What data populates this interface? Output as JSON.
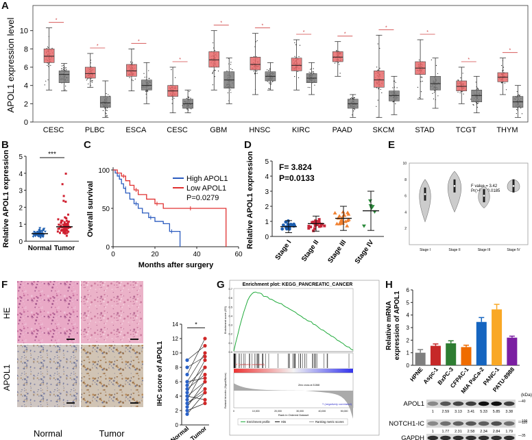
{
  "panels": {
    "A": "A",
    "B": "B",
    "C": "C",
    "D": "D",
    "E": "E",
    "F": "F",
    "G": "G",
    "H": "H"
  },
  "chart_data": [
    {
      "id": "A",
      "type": "box",
      "ylabel": "APOL1 expression level",
      "ylim": [
        0,
        12
      ],
      "yticks": [
        0,
        2,
        4,
        6,
        8,
        10
      ],
      "categories": [
        "CESC",
        "PLBC",
        "ESCA",
        "CESC",
        "GBM",
        "HNSC",
        "KIRC",
        "PAAD",
        "SKCM",
        "STAD",
        "TCGT",
        "THYM"
      ],
      "series": [
        {
          "name": "Tumor",
          "color": "#e8686a",
          "boxes": [
            {
              "q1": 6.5,
              "med": 7.2,
              "q3": 8.0,
              "lo": 3.5,
              "hi": 10.3
            },
            {
              "q1": 4.8,
              "med": 5.3,
              "q3": 6.0,
              "lo": 3.8,
              "hi": 7.5
            },
            {
              "q1": 5.0,
              "med": 5.6,
              "q3": 6.3,
              "lo": 3.4,
              "hi": 8.0
            },
            {
              "q1": 2.8,
              "med": 3.4,
              "q3": 4.0,
              "lo": 1.0,
              "hi": 6.0
            },
            {
              "q1": 6.0,
              "med": 6.8,
              "q3": 7.7,
              "lo": 3.5,
              "hi": 10.0
            },
            {
              "q1": 5.7,
              "med": 6.3,
              "q3": 7.1,
              "lo": 3.0,
              "hi": 9.7
            },
            {
              "q1": 5.6,
              "med": 6.2,
              "q3": 7.0,
              "lo": 3.5,
              "hi": 9.0
            },
            {
              "q1": 6.6,
              "med": 7.1,
              "q3": 7.7,
              "lo": 5.0,
              "hi": 8.8
            },
            {
              "q1": 3.8,
              "med": 4.6,
              "q3": 5.6,
              "lo": 0.5,
              "hi": 9.5
            },
            {
              "q1": 5.2,
              "med": 5.9,
              "q3": 6.6,
              "lo": 2.5,
              "hi": 9.0
            },
            {
              "q1": 3.4,
              "med": 3.9,
              "q3": 4.5,
              "lo": 2.0,
              "hi": 6.0
            },
            {
              "q1": 4.4,
              "med": 4.9,
              "q3": 5.4,
              "lo": 3.0,
              "hi": 7.0
            }
          ]
        },
        {
          "name": "Normal",
          "color": "#7a7a7a",
          "boxes": [
            {
              "q1": 4.3,
              "med": 5.2,
              "q3": 5.6,
              "lo": 3.4,
              "hi": 6.4
            },
            {
              "q1": 1.6,
              "med": 2.1,
              "q3": 2.8,
              "lo": 0.5,
              "hi": 4.5
            },
            {
              "q1": 3.5,
              "med": 4.0,
              "q3": 4.6,
              "lo": 2.0,
              "hi": 6.5
            },
            {
              "q1": 1.5,
              "med": 2.0,
              "q3": 2.5,
              "lo": 1.0,
              "hi": 3.5
            },
            {
              "q1": 3.7,
              "med": 4.6,
              "q3": 5.5,
              "lo": 2.0,
              "hi": 7.0
            },
            {
              "q1": 4.5,
              "med": 5.0,
              "q3": 5.5,
              "lo": 3.5,
              "hi": 6.5
            },
            {
              "q1": 4.3,
              "med": 4.8,
              "q3": 5.3,
              "lo": 3.0,
              "hi": 6.5
            },
            {
              "q1": 1.5,
              "med": 2.0,
              "q3": 2.5,
              "lo": 0.5,
              "hi": 3.0
            },
            {
              "q1": 2.3,
              "med": 2.9,
              "q3": 3.4,
              "lo": 0.8,
              "hi": 5.0
            },
            {
              "q1": 3.5,
              "med": 4.2,
              "q3": 5.0,
              "lo": 1.5,
              "hi": 7.0
            },
            {
              "q1": 2.2,
              "med": 2.9,
              "q3": 3.5,
              "lo": 1.0,
              "hi": 5.0
            },
            {
              "q1": 1.6,
              "med": 2.2,
              "q3": 2.8,
              "lo": 0.5,
              "hi": 4.0
            }
          ]
        }
      ],
      "significance": "*"
    },
    {
      "id": "B",
      "type": "scatter",
      "ylabel": "Relative APOL1 expression",
      "ylim": [
        0,
        5
      ],
      "yticks": [
        0,
        1,
        2,
        3,
        4,
        5
      ],
      "categories": [
        "Normal",
        "Tumor"
      ],
      "means": [
        0.45,
        0.85
      ],
      "significance": "***"
    },
    {
      "id": "C",
      "type": "line",
      "xlabel": "Months after surgery",
      "ylabel": "Overall survival",
      "xlim": [
        0,
        60
      ],
      "ylim": [
        0,
        100
      ],
      "xticks": [
        0,
        20,
        40,
        60
      ],
      "yticks": [
        0,
        50,
        100
      ],
      "series": [
        {
          "name": "High APOL1",
          "color": "#2a5bbf",
          "x": [
            0,
            1,
            2,
            3,
            4,
            5,
            6,
            8,
            10,
            12,
            14,
            17,
            20,
            24,
            27,
            32
          ],
          "y": [
            100,
            96,
            92,
            88,
            82,
            76,
            70,
            62,
            56,
            50,
            44,
            38,
            33,
            30,
            20,
            0
          ]
        },
        {
          "name": "Low APOL1",
          "color": "#e03030",
          "x": [
            0,
            2,
            4,
            6,
            8,
            10,
            12,
            16,
            20,
            24,
            30,
            36,
            44,
            53,
            54
          ],
          "y": [
            100,
            96,
            92,
            86,
            80,
            74,
            68,
            62,
            56,
            50,
            50,
            50,
            50,
            50,
            0
          ]
        }
      ],
      "annotation": "P=0.0279"
    },
    {
      "id": "D",
      "type": "scatter",
      "ylabel": "Relative APOL1 expression",
      "ylim": [
        0,
        5
      ],
      "yticks": [
        0,
        1,
        2,
        3,
        4,
        5
      ],
      "categories": [
        "Stage I",
        "Stage II",
        "Stage III",
        "Stage IV"
      ],
      "colors": [
        "#1e5fb0",
        "#c8283a",
        "#f08030",
        "#2a8a3a"
      ],
      "means": [
        0.65,
        0.85,
        1.2,
        1.7
      ],
      "errors": [
        0.4,
        0.5,
        0.8,
        1.3
      ],
      "stat_f": "F= 3.824",
      "stat_p": "P=0.0133"
    },
    {
      "id": "E",
      "type": "violin",
      "ylim": [
        0,
        10
      ],
      "yticks": [
        2,
        4,
        6,
        8,
        10
      ],
      "categories": [
        "Stage I",
        "Stage II",
        "Stage III",
        "Stage IV"
      ],
      "medians": [
        6.2,
        7.2,
        6.0,
        7.2
      ],
      "f_value": "F value = 3.42",
      "pr_value": "Pr(>F) = 0.0185"
    },
    {
      "id": "F",
      "type": "paired",
      "ylabel": "IHC score of APOL1",
      "ylim": [
        0,
        14
      ],
      "yticks": [
        0,
        2,
        4,
        6,
        8,
        10,
        12,
        14
      ],
      "categories": [
        "Normal",
        "Tumor"
      ],
      "pairs": [
        [
          1.5,
          4.5
        ],
        [
          2,
          3
        ],
        [
          2.5,
          6
        ],
        [
          3,
          4.5
        ],
        [
          3.5,
          8
        ],
        [
          4,
          3.5
        ],
        [
          4,
          6
        ],
        [
          4.5,
          9
        ],
        [
          5,
          7
        ],
        [
          6,
          10
        ],
        [
          6,
          6.5
        ],
        [
          7,
          12
        ],
        [
          8,
          9.5
        ],
        [
          9,
          11
        ],
        [
          3,
          5
        ],
        [
          5.5,
          8
        ]
      ],
      "significance": "*"
    },
    {
      "id": "G",
      "type": "line",
      "title": "Enrichment plot: KEGG_PANCREATIC_CANCER",
      "ylabel": "Enrichment score (ES)",
      "xlabel": "Rank in Ordered Dataset",
      "ylim": [
        0,
        0.7
      ],
      "yticks": [
        "0.7",
        "0.6",
        "0.5",
        "0.4",
        "0.3",
        "0.2",
        "0.1",
        "0.0"
      ],
      "xticks": [
        "0",
        "10,000",
        "20,000",
        "30,000",
        "40,000",
        "50,000"
      ],
      "pos_label": "'h' (positively correlated)",
      "neg_label": "'l' (negatively correlated)",
      "zero_cross": "Zero cross at 31368",
      "metric_label": "Ranked list metric (Signal2Noise)",
      "legend": [
        "Enrichment profile",
        "Hits",
        "Ranking metric scores"
      ]
    },
    {
      "id": "H",
      "type": "bar",
      "ylabel_line1": "Relative mRNA",
      "ylabel_line2": "expression of APOL1",
      "ylim": [
        0,
        6
      ],
      "yticks": [
        0,
        1,
        2,
        3,
        4,
        5,
        6
      ],
      "categories": [
        "HPNE",
        "Aspc-1",
        "BxPC-3",
        "CFPAC-1",
        "MIA PaCa-2",
        "PANC-1",
        "PATU-8988"
      ],
      "values": [
        1.0,
        1.55,
        1.75,
        1.45,
        3.45,
        4.45,
        2.2
      ],
      "errors": [
        0.25,
        0.15,
        0.2,
        0.15,
        0.35,
        0.4,
        0.12
      ],
      "colors": [
        "#7f7f7f",
        "#c62828",
        "#2e7d32",
        "#ef6c00",
        "#1565c0",
        "#f9a825",
        "#7b1fa2"
      ]
    }
  ],
  "westernH": {
    "kda_label": "(kDa)",
    "rows": [
      {
        "name": "APOL1",
        "kda": "40",
        "values": [
          "1",
          "2.59",
          "3.13",
          "3.41",
          "5.33",
          "5.85",
          "3.38"
        ]
      },
      {
        "name": "NOTCH1-IC",
        "kda": "100",
        "values": [
          "1",
          "1.77",
          "2.31",
          "2.58",
          "2.34",
          "2.84",
          "1.79"
        ]
      },
      {
        "name": "GAPDH",
        "kda": "35",
        "values": []
      }
    ],
    "extra_kda": "110"
  },
  "histology": {
    "row_he": "HE",
    "row_apol1": "APOL1",
    "col_normal": "Normal",
    "col_tumor": "Tumor"
  }
}
